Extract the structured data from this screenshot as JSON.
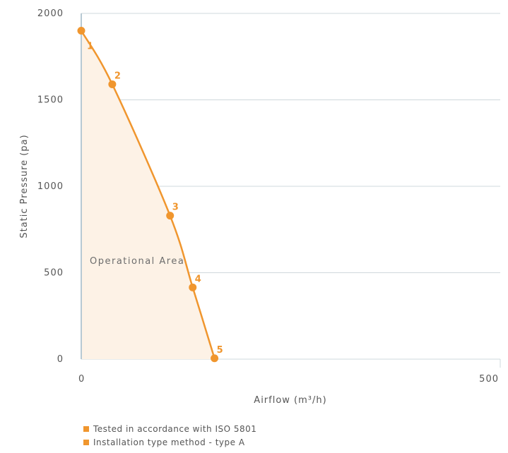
{
  "colors": {
    "curve": "#f0962e",
    "area_fill": "#fdf2e6",
    "grid": "#cfd8dc",
    "y_axis": "#b7c9d3",
    "text": "#555555"
  },
  "chart_data": {
    "type": "line",
    "title": "",
    "xlabel": "Airflow (m³/h)",
    "ylabel": "Static Pressure (pa)",
    "xlim": [
      0,
      500
    ],
    "ylim": [
      0,
      2000
    ],
    "x_ticks": [
      "0",
      "500"
    ],
    "y_ticks": [
      "0",
      "500",
      "1000",
      "1500",
      "2000"
    ],
    "grid": "horizontal",
    "series": [
      {
        "points": [
          {
            "label": "1",
            "x": 0,
            "y": 1900
          },
          {
            "label": "2",
            "x": 37,
            "y": 1590
          },
          {
            "label": "3",
            "x": 106,
            "y": 830
          },
          {
            "label": "4",
            "x": 133,
            "y": 415
          },
          {
            "label": "5",
            "x": 159,
            "y": 5
          }
        ]
      }
    ],
    "annotations": [
      "Operational Area"
    ]
  },
  "legend": {
    "items": [
      "Tested in accordance with ISO 5801",
      "Installation type method - type A"
    ]
  }
}
